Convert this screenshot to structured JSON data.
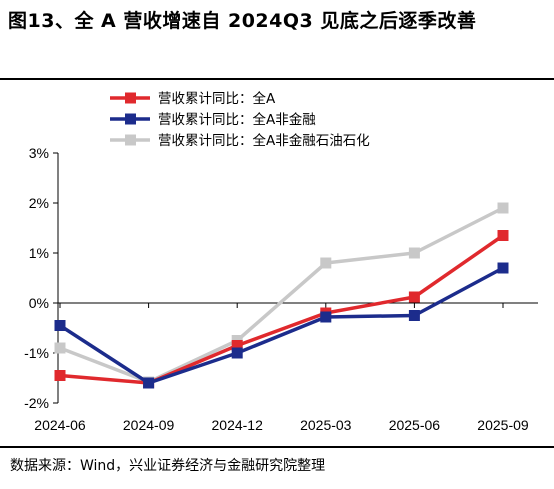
{
  "figure": {
    "title": "图13、全 A 营收增速自 2024Q3 见底之后逐季改善",
    "source": "数据来源：Wind，兴业证券经济与金融研究院整理"
  },
  "chart_data": {
    "type": "line",
    "title": "",
    "xlabel": "",
    "ylabel": "",
    "categories": [
      "2024-06",
      "2024-09",
      "2024-12",
      "2025-03",
      "2025-06",
      "2025-09"
    ],
    "ylim": [
      -2,
      3
    ],
    "yticks": [
      "-2%",
      "-1%",
      "0%",
      "1%",
      "2%",
      "3%"
    ],
    "legend_position": "top-center",
    "grid": false,
    "series": [
      {
        "name": "营收累计同比：全A",
        "color": "#e0292d",
        "values": [
          -1.45,
          -1.6,
          -0.85,
          -0.2,
          0.12,
          1.35
        ]
      },
      {
        "name": "营收累计同比：全A非金融",
        "color": "#1c2c8c",
        "values": [
          -0.45,
          -1.6,
          -1.0,
          -0.28,
          -0.25,
          0.7
        ]
      },
      {
        "name": "营收累计同比：全A非金融石油石化",
        "color": "#c8c8c8",
        "values": [
          -0.9,
          -1.58,
          -0.75,
          0.8,
          1.0,
          1.9
        ]
      }
    ]
  }
}
